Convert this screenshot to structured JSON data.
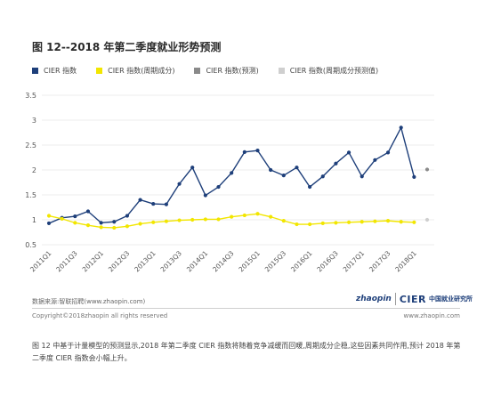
{
  "title": "图 12--2018 年第二季度就业形势预测",
  "legend": [
    {
      "label": "CIER 指数",
      "color": "#1e3f7a"
    },
    {
      "label": "CIER 指数(周期成分)",
      "color": "#f2e600"
    },
    {
      "label": "CIER 指数(预测)",
      "color": "#8a8a8a"
    },
    {
      "label": "CIER 指数(周期成分预测值)",
      "color": "#cfcfcf"
    }
  ],
  "chart_data": {
    "type": "line",
    "categories": [
      "2011Q1",
      "2011Q2",
      "2011Q3",
      "2011Q4",
      "2012Q1",
      "2012Q2",
      "2012Q3",
      "2012Q4",
      "2013Q1",
      "2013Q2",
      "2013Q3",
      "2013Q4",
      "2014Q1",
      "2014Q2",
      "2014Q3",
      "2014Q4",
      "2015Q1",
      "2015Q2",
      "2015Q3",
      "2015Q4",
      "2016Q1",
      "2016Q2",
      "2016Q3",
      "2016Q4",
      "2017Q1",
      "2017Q2",
      "2017Q3",
      "2017Q4",
      "2018Q1",
      "2018Q2"
    ],
    "tick_labels": [
      "2011Q1",
      "2011Q3",
      "2012Q1",
      "2012Q3",
      "2013Q1",
      "2013Q3",
      "2014Q1",
      "2014Q3",
      "2015Q1",
      "2015Q3",
      "2016Q1",
      "2016Q3",
      "2017Q1",
      "2017Q3",
      "2018Q1"
    ],
    "series": [
      {
        "name": "CIER 指数",
        "color": "#1e3f7a",
        "values": [
          0.93,
          1.04,
          1.07,
          1.17,
          0.94,
          0.96,
          1.08,
          1.4,
          1.32,
          1.31,
          1.72,
          2.05,
          1.49,
          1.66,
          1.94,
          2.36,
          2.39,
          2.0,
          1.89,
          2.05,
          1.66,
          1.87,
          2.13,
          2.35,
          1.87,
          2.2,
          2.35,
          2.85,
          1.86,
          null
        ]
      },
      {
        "name": "CIER 指数(周期成分)",
        "color": "#f2e600",
        "values": [
          1.08,
          1.02,
          0.94,
          0.89,
          0.85,
          0.84,
          0.87,
          0.92,
          0.95,
          0.97,
          0.99,
          1.0,
          1.01,
          1.01,
          1.06,
          1.09,
          1.12,
          1.06,
          0.98,
          0.91,
          0.91,
          0.93,
          0.94,
          0.95,
          0.96,
          0.97,
          0.98,
          0.96,
          0.95,
          null
        ]
      },
      {
        "name": "CIER 指数(预测)",
        "color": "#8a8a8a",
        "values": [
          null,
          null,
          null,
          null,
          null,
          null,
          null,
          null,
          null,
          null,
          null,
          null,
          null,
          null,
          null,
          null,
          null,
          null,
          null,
          null,
          null,
          null,
          null,
          null,
          null,
          null,
          null,
          null,
          null,
          2.01
        ]
      },
      {
        "name": "CIER 指数(周期成分预测值)",
        "color": "#cfcfcf",
        "values": [
          null,
          null,
          null,
          null,
          null,
          null,
          null,
          null,
          null,
          null,
          null,
          null,
          null,
          null,
          null,
          null,
          null,
          null,
          null,
          null,
          null,
          null,
          null,
          null,
          null,
          null,
          null,
          null,
          null,
          1.0
        ]
      }
    ],
    "yticks": [
      "0.5",
      "1",
      "1.5",
      "2",
      "2.5",
      "3",
      "3.5"
    ],
    "ylim": [
      0.5,
      3.5
    ],
    "grid": "horizontal",
    "legend_position": "top-left"
  },
  "footer": {
    "source": "数据来源:智联招聘(www.zhaopin.com)",
    "copyright": "Copyright©2018zhaopin all rights reserved",
    "website": "www.zhaopin.com",
    "logo_zhao": "zhaopin",
    "logo_cier": "CIER",
    "logo_cn": "中国就业研究所"
  },
  "note": "图 12 中基于计量模型的预测显示,2018 年第二季度 CIER 指数将随着竞争减缓而回暖,周期成分企稳,这些因素共同作用,预计 2018 年第二季度 CIER 指数会小幅上升。"
}
